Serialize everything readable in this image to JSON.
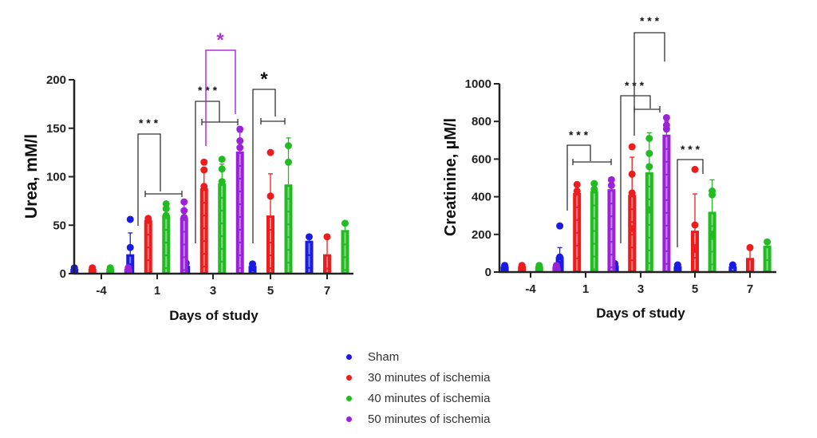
{
  "legend": [
    {
      "label": "Sham",
      "color": "#1a1ae6"
    },
    {
      "label": "30 minutes of ischemia",
      "color": "#ee1c1c"
    },
    {
      "label": "40 minutes of ischemia",
      "color": "#22bb22"
    },
    {
      "label": "50 minutes of ischemia",
      "color": "#9b22d9"
    }
  ],
  "chart_data": [
    {
      "type": "bar",
      "title": "",
      "xlabel": "Days of study",
      "ylabel": "Urea, mM/l",
      "ylim": [
        0,
        200
      ],
      "yticks": [
        0,
        50,
        100,
        150,
        200
      ],
      "categories": [
        "-4",
        "1",
        "3",
        "5",
        "7"
      ],
      "series": [
        {
          "name": "Sham",
          "values": [
            5,
            20,
            8,
            8,
            34
          ],
          "errors": [
            2,
            22,
            3,
            2,
            4
          ],
          "points": [
            [
              6,
              4
            ],
            [
              56,
              27,
              7
            ],
            [
              11,
              6
            ],
            [
              10,
              6
            ],
            [
              38
            ]
          ]
        },
        {
          "name": "30 minutes of ischemia",
          "values": [
            5,
            55,
            88,
            60,
            20
          ],
          "errors": [
            2,
            2,
            20,
            43,
            18
          ],
          "points": [
            [
              6,
              4
            ],
            [
              57,
              55
            ],
            [
              115,
              107,
              90
            ],
            [
              125,
              80
            ],
            [
              38
            ]
          ]
        },
        {
          "name": "40 minutes of ischemia",
          "values": [
            5,
            60,
            93,
            92,
            45
          ],
          "errors": [
            2,
            12,
            20,
            48,
            6
          ],
          "points": [
            [
              6,
              4
            ],
            [
              72,
              67,
              60
            ],
            [
              118,
              108,
              95
            ],
            [
              132,
              115
            ],
            [
              52
            ]
          ]
        },
        {
          "name": "50 minutes of ischemia",
          "values": [
            5,
            58,
            126,
            null,
            null
          ],
          "errors": [
            2,
            14,
            20,
            null,
            null
          ],
          "points": [
            [
              6,
              4
            ],
            [
              74,
              65,
              58
            ],
            [
              149,
              137,
              130
            ],
            [],
            []
          ]
        }
      ],
      "annotations": [
        {
          "text": "* * *",
          "day": "1",
          "color": "#111111"
        },
        {
          "text": "* * *",
          "day": "3",
          "color": "#111111"
        },
        {
          "text": "*",
          "day": "3",
          "color": "#b030d8"
        },
        {
          "text": "*",
          "day": "5",
          "color": "#111111"
        }
      ]
    },
    {
      "type": "bar",
      "title": "",
      "xlabel": "Days of study",
      "ylabel": "Creatinine, µM/l",
      "ylim": [
        0,
        1000
      ],
      "yticks": [
        0,
        200,
        400,
        600,
        800,
        1000
      ],
      "categories": [
        "-4",
        "1",
        "3",
        "5",
        "7"
      ],
      "series": [
        {
          "name": "Sham",
          "values": [
            30,
            80,
            35,
            30,
            30
          ],
          "errors": [
            8,
            50,
            10,
            8,
            8
          ],
          "points": [
            [
              35,
              25
            ],
            [
              245,
              80,
              40
            ],
            [
              45,
              30
            ],
            [
              38,
              28
            ],
            [
              38
            ]
          ]
        },
        {
          "name": "30 minutes of ischemia",
          "values": [
            30,
            420,
            410,
            220,
            75
          ],
          "errors": [
            8,
            40,
            200,
            195,
            55
          ],
          "points": [
            [
              35,
              25
            ],
            [
              465,
              430
            ],
            [
              665,
              520,
              420,
              230
            ],
            [
              545,
              250,
              120
            ],
            [
              130
            ]
          ]
        },
        {
          "name": "40 minutes of ischemia",
          "values": [
            30,
            430,
            530,
            320,
            140
          ],
          "errors": [
            8,
            40,
            210,
            170,
            15
          ],
          "points": [
            [
              35,
              25
            ],
            [
              470,
              440
            ],
            [
              710,
              630,
              560,
              330
            ],
            [
              430,
              410,
              200
            ],
            [
              160
            ]
          ]
        },
        {
          "name": "50 minutes of ischemia",
          "values": [
            30,
            440,
            730,
            null,
            null
          ],
          "errors": [
            8,
            45,
            70,
            null,
            null
          ],
          "points": [
            [
              35,
              25
            ],
            [
              490,
              460
            ],
            [
              820,
              780,
              760
            ],
            [],
            []
          ]
        }
      ],
      "annotations": [
        {
          "text": "* * *",
          "day": "1",
          "color": "#111111"
        },
        {
          "text": "* * *",
          "day": "3",
          "color": "#111111"
        },
        {
          "text": "* * *",
          "day": "3",
          "color": "#111111"
        },
        {
          "text": "* * *",
          "day": "5",
          "color": "#111111"
        }
      ]
    }
  ]
}
